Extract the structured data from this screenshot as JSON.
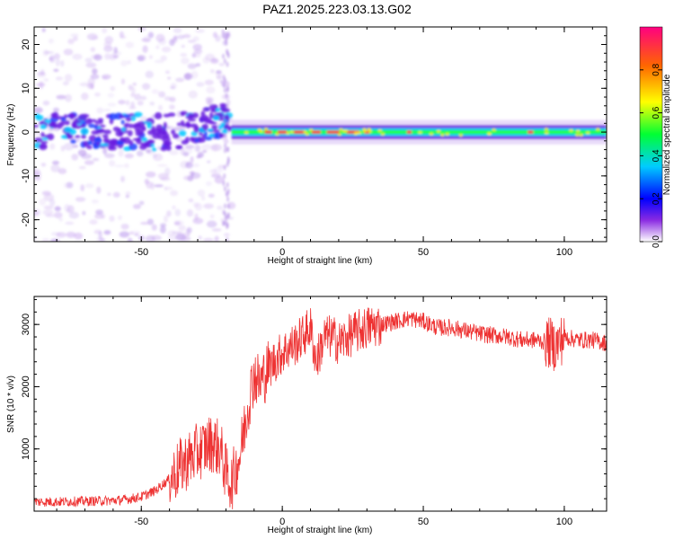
{
  "title": "PAZ1.2025.223.03.13.G02",
  "chart_data": [
    {
      "type": "heatmap",
      "xlabel": "Height of straight line (km)",
      "ylabel": "Frequency (Hz)",
      "xlim": [
        -88,
        115
      ],
      "ylim": [
        -25,
        24
      ],
      "xticks": [
        -50,
        0,
        50,
        100
      ],
      "yticks": [
        -20,
        -10,
        0,
        10,
        20
      ],
      "colorbar": {
        "label": "Normalized spectral amplitude",
        "range": [
          0.0,
          1.0
        ],
        "ticks": [
          0.0,
          0.2,
          0.4,
          0.6,
          0.8
        ]
      }
    },
    {
      "type": "line",
      "xlabel": "Height of straight line (km)",
      "ylabel": "SNR (10 * v/v)",
      "xlim": [
        -88,
        115
      ],
      "ylim": [
        0,
        3450
      ],
      "xticks": [
        -50,
        0,
        50,
        100
      ],
      "yticks": [
        1000,
        2000,
        3000
      ],
      "color": "#ee3333",
      "series": [
        {
          "x": [
            -88,
            -80,
            -70,
            -60,
            -55,
            -50,
            -45,
            -40,
            -35,
            -30,
            -25,
            -22,
            -20,
            -18,
            -15,
            -12,
            -10,
            -8,
            -5,
            0,
            5,
            10,
            12,
            15,
            18,
            20,
            25,
            30,
            35,
            40,
            45,
            50,
            55,
            60,
            70,
            80,
            85,
            90,
            95,
            97,
            100,
            105,
            110,
            115
          ],
          "y": [
            150,
            150,
            160,
            170,
            190,
            230,
            330,
            520,
            760,
            950,
            1100,
            1000,
            620,
            450,
            900,
            1750,
            2200,
            2050,
            2300,
            2550,
            2700,
            2950,
            2400,
            2800,
            2800,
            2700,
            2850,
            2950,
            3000,
            3050,
            3100,
            3050,
            2950,
            2950,
            2850,
            2800,
            2750,
            2750,
            2700,
            2650,
            2800,
            2750,
            2750,
            2700
          ]
        }
      ]
    }
  ]
}
